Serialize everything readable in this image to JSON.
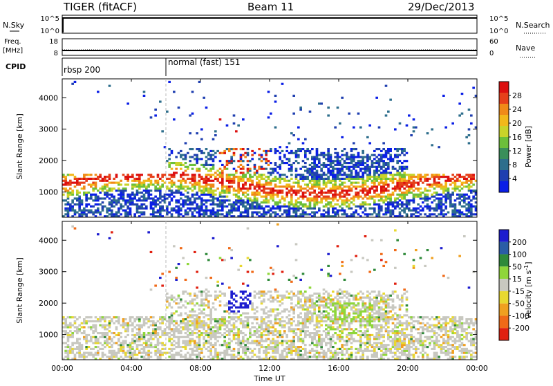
{
  "header": {
    "radar": "TIGER (fitACF)",
    "beam": "Beam 11",
    "date": "29/Dec/2013"
  },
  "top_panel": {
    "left_label": "N.Sky",
    "left_ticks": [
      "10^5",
      "10^0"
    ],
    "right_label": "N.Search",
    "right_ticks": [
      "10^5",
      "10^0"
    ]
  },
  "freq_panel": {
    "left_label_1": "Freq.",
    "left_label_2": "[MHz]",
    "left_ticks": [
      "18",
      "8"
    ],
    "right_label": "Nave",
    "right_ticks": [
      "60",
      "0"
    ]
  },
  "cpid_panel": {
    "label": "CPID",
    "modes": [
      {
        "name": "rbsp 200",
        "start_hour": 0
      },
      {
        "name": "normal (fast) 151",
        "start_hour": 6
      }
    ]
  },
  "x_axis": {
    "label": "Time UT",
    "ticks": [
      "00:00",
      "04:00",
      "08:00",
      "12:00",
      "16:00",
      "20:00",
      "00:00"
    ],
    "tick_hours": [
      0,
      4,
      8,
      12,
      16,
      20,
      24
    ]
  },
  "chart_data": [
    {
      "type": "heatmap",
      "ylabel": "Slant Range [km]",
      "yticks": [
        "1000",
        "2000",
        "3000",
        "4000"
      ],
      "ylim": [
        200,
        4600
      ],
      "xlim_hours": [
        0,
        24
      ],
      "colorbar": {
        "label": "Power [dB]",
        "ticks": [
          "4",
          "8",
          "12",
          "16",
          "20",
          "24",
          "28"
        ],
        "colors": [
          "#0a1ee6",
          "#1f3fb0",
          "#2d6e8c",
          "#3a8f5a",
          "#6cbf3a",
          "#c9d32a",
          "#f2b81a",
          "#f08a18",
          "#e6401a",
          "#dc0f0f"
        ]
      }
    },
    {
      "type": "heatmap",
      "ylabel": "Slant Range [km]",
      "yticks": [
        "1000",
        "2000",
        "3000",
        "4000"
      ],
      "ylim": [
        200,
        4600
      ],
      "xlim_hours": [
        0,
        24
      ],
      "colorbar": {
        "label": "Velocity [m s^-1]",
        "ticks": [
          "200",
          "100",
          "50",
          "15",
          "-15",
          "-50",
          "-100",
          "-200"
        ],
        "colors": [
          "#1d1dcf",
          "#2a5da6",
          "#2f8a3a",
          "#8fd63a",
          "#c8c8c0",
          "#e8d830",
          "#f0a020",
          "#f06a18",
          "#e02010"
        ]
      }
    }
  ]
}
